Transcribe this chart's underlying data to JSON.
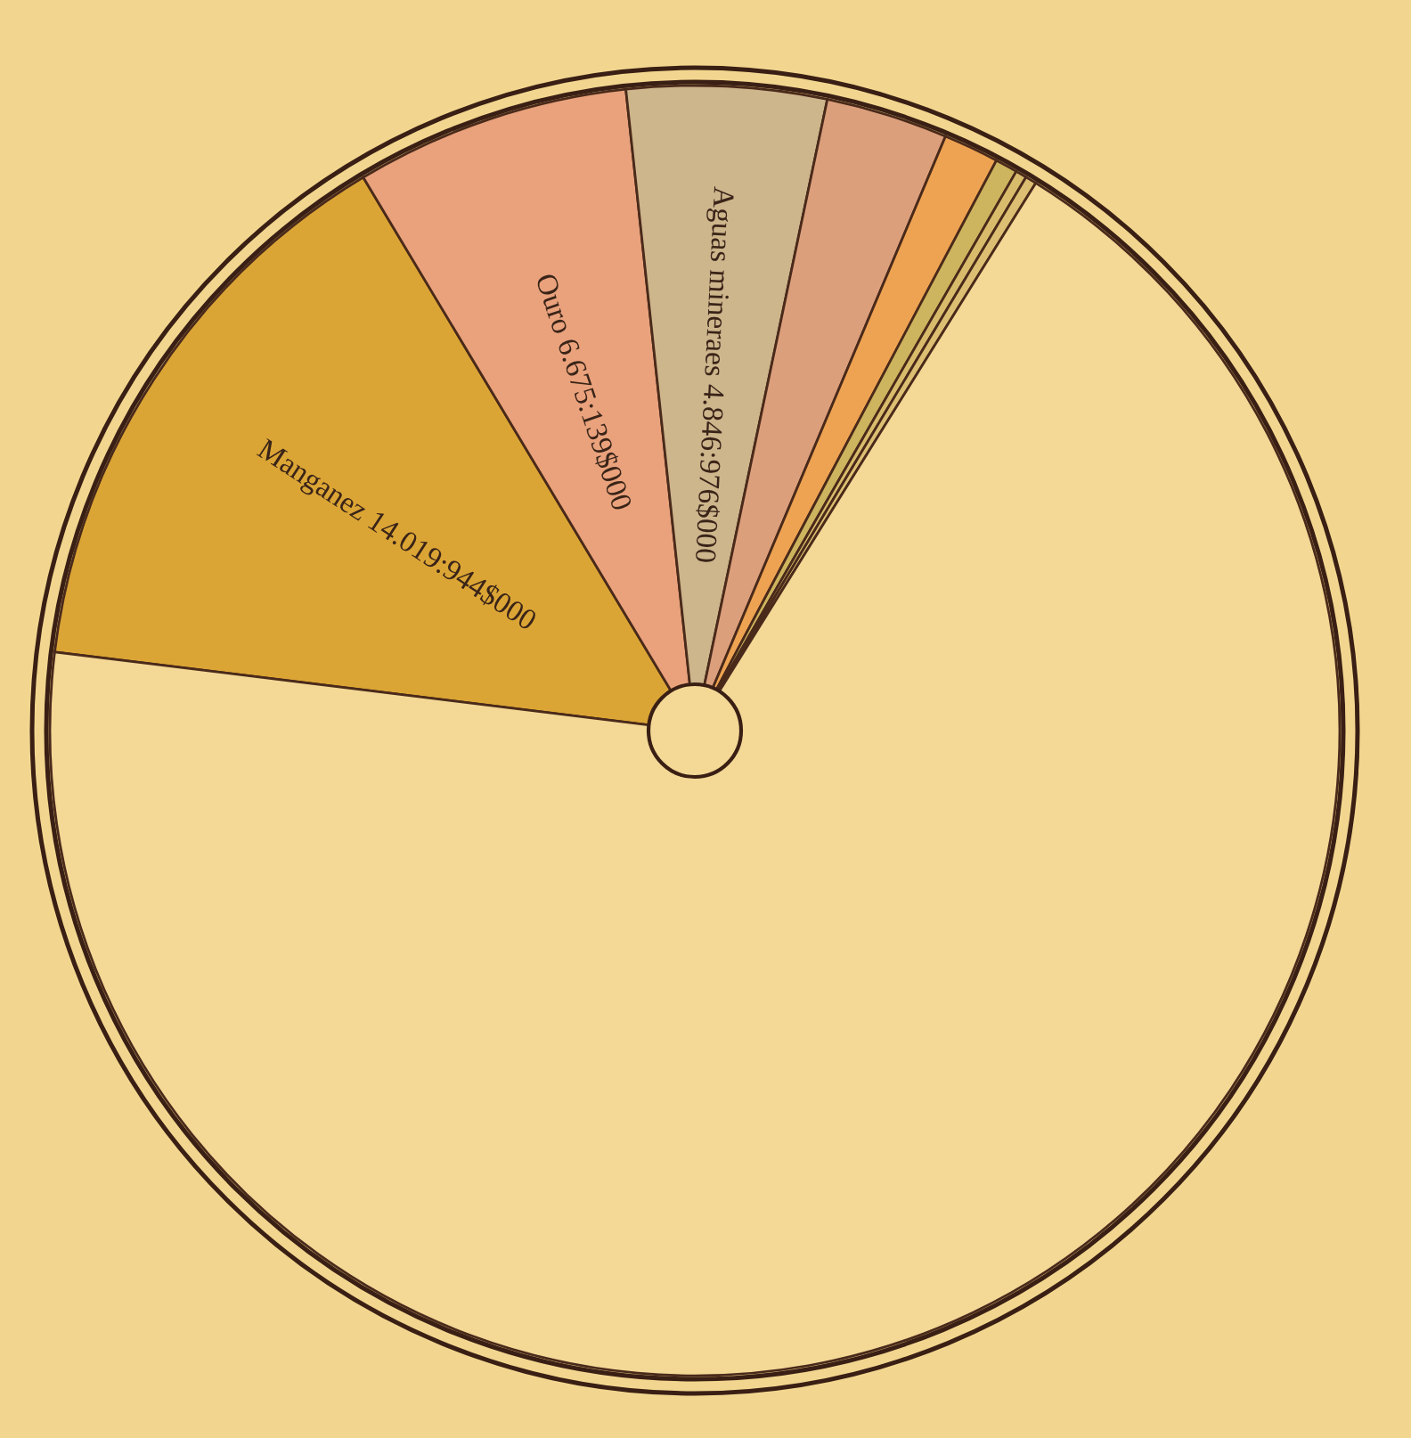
{
  "chart_data": {
    "type": "pie",
    "categories": [
      "Manganez",
      "Ouro",
      "Aguas mineraes",
      null,
      null,
      null,
      null,
      null,
      null
    ],
    "values": [
      14.46,
      6.89,
      5.0,
      3.06,
      1.39,
      0.56,
      0.28,
      0.28,
      68.08
    ],
    "value_labels": [
      "14.019:944$000",
      "6.675:139$000",
      "4.846:976$000",
      null,
      null,
      null,
      null,
      null,
      null
    ],
    "colors": [
      "#dba535",
      "#e9a27c",
      "#cdb58c",
      "#dc9f7c",
      "#eea352",
      "#cdb45e",
      "#d8bc6c",
      "#dcbf72",
      "#f3d896"
    ]
  }
}
